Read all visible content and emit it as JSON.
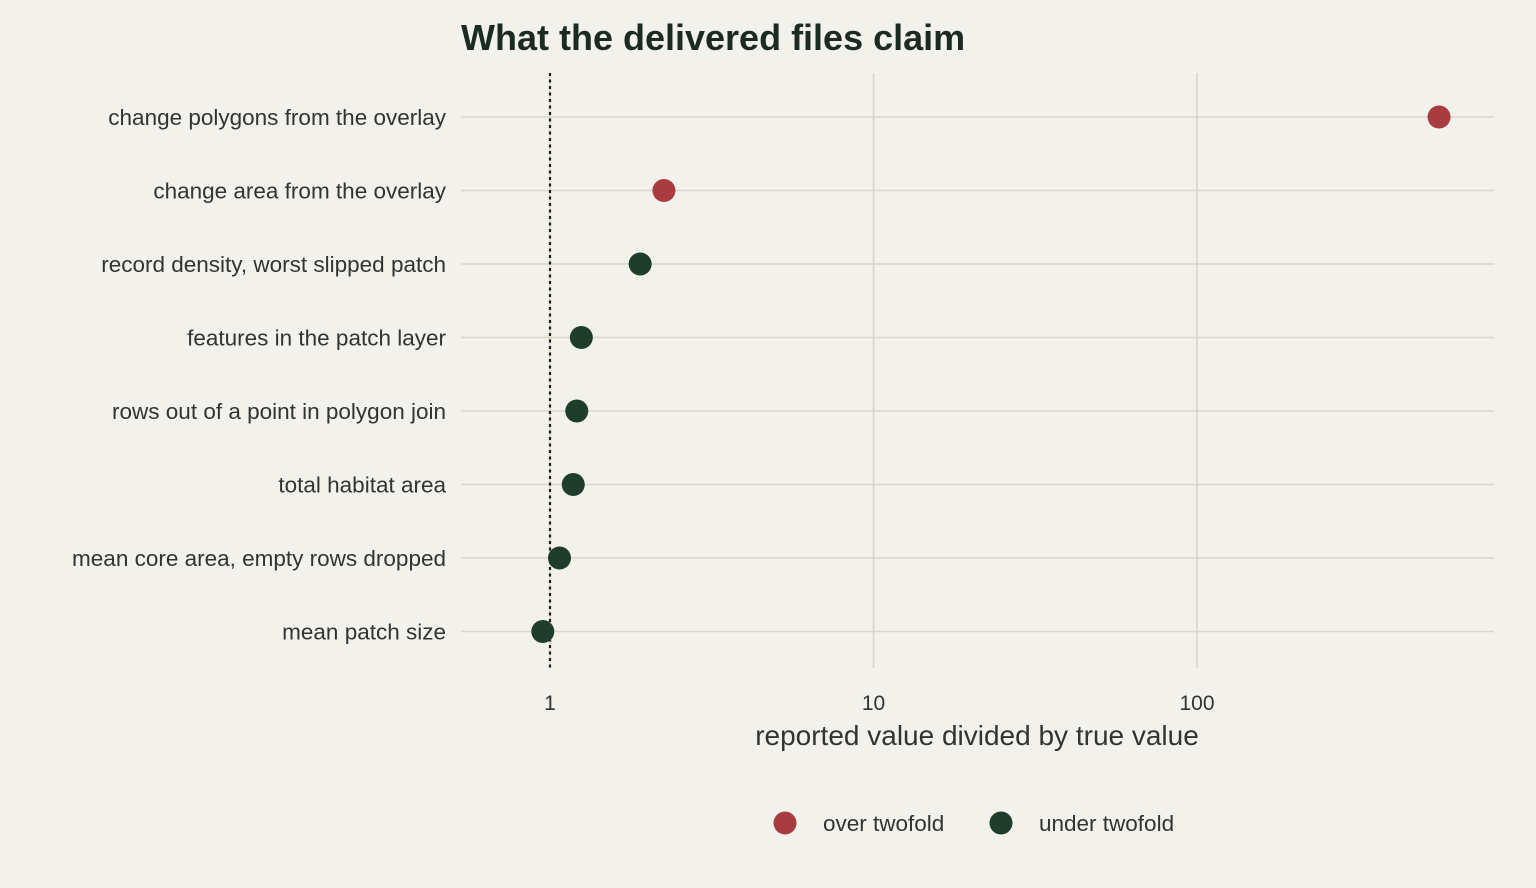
{
  "chart_data": {
    "type": "scatter",
    "title": "What the delivered files claim",
    "xlabel": "reported value divided by true value",
    "ylabel": "",
    "x_scale": "log10",
    "xlim": [
      0.6,
      800
    ],
    "x_ticks": [
      1,
      10,
      100
    ],
    "x_tick_labels": [
      "1",
      "10",
      "100"
    ],
    "reference_line": {
      "x": 1,
      "style": "dotted"
    },
    "grid": true,
    "legend_position": "bottom",
    "categories": [
      "change polygons from the overlay",
      "change area from the overlay",
      "record density, worst slipped patch",
      "features in the patch layer",
      "rows out of a point in polygon join",
      "total habitat area",
      "mean core area, empty rows dropped",
      "mean patch size"
    ],
    "values": [
      560,
      2.25,
      1.9,
      1.25,
      1.21,
      1.18,
      1.07,
      0.95
    ],
    "groups": [
      "over twofold",
      "over twofold",
      "under twofold",
      "under twofold",
      "under twofold",
      "under twofold",
      "under twofold",
      "under twofold"
    ],
    "legend": [
      {
        "name": "over twofold",
        "color": "#a83c40"
      },
      {
        "name": "under twofold",
        "color": "#1f3d2c"
      }
    ]
  }
}
